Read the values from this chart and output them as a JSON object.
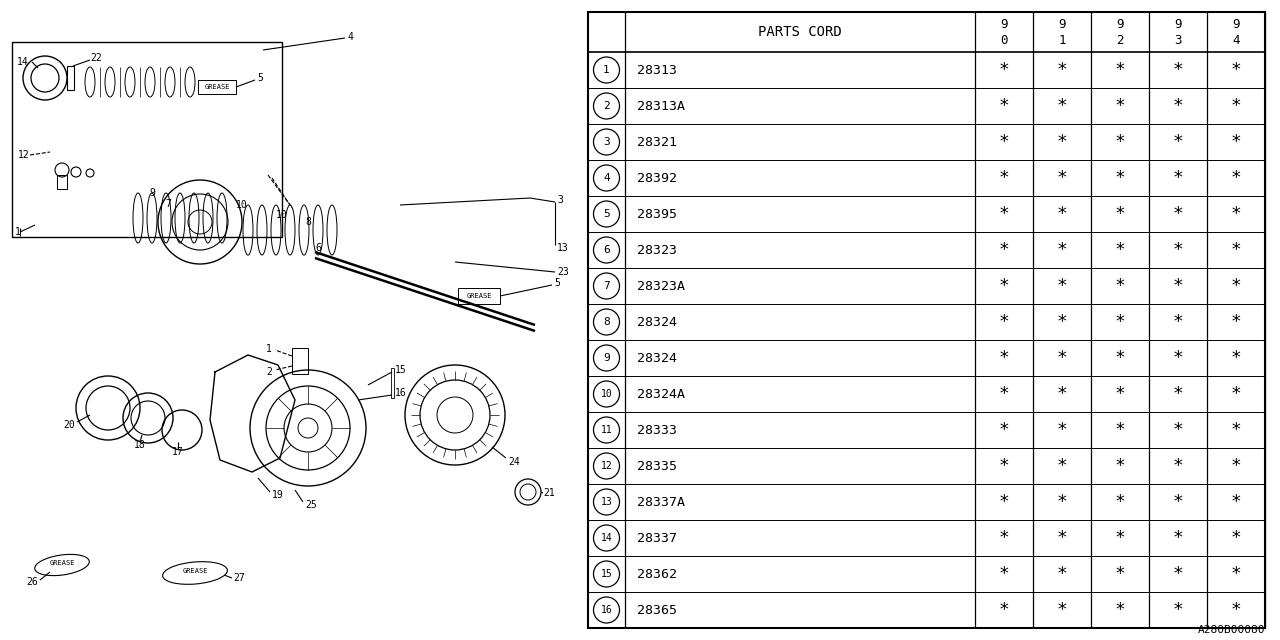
{
  "rows": [
    [
      "1",
      "28313"
    ],
    [
      "2",
      "28313A"
    ],
    [
      "3",
      "28321"
    ],
    [
      "4",
      "28392"
    ],
    [
      "5",
      "28395"
    ],
    [
      "6",
      "28323"
    ],
    [
      "7",
      "28323A"
    ],
    [
      "8",
      "28324"
    ],
    [
      "9",
      "28324"
    ],
    [
      "10",
      "28324A"
    ],
    [
      "11",
      "28333"
    ],
    [
      "12",
      "28335"
    ],
    [
      "13",
      "28337A"
    ],
    [
      "14",
      "28337"
    ],
    [
      "15",
      "28362"
    ],
    [
      "16",
      "28365"
    ]
  ],
  "ref_code": "A280B00080",
  "bg_color": "#ffffff"
}
